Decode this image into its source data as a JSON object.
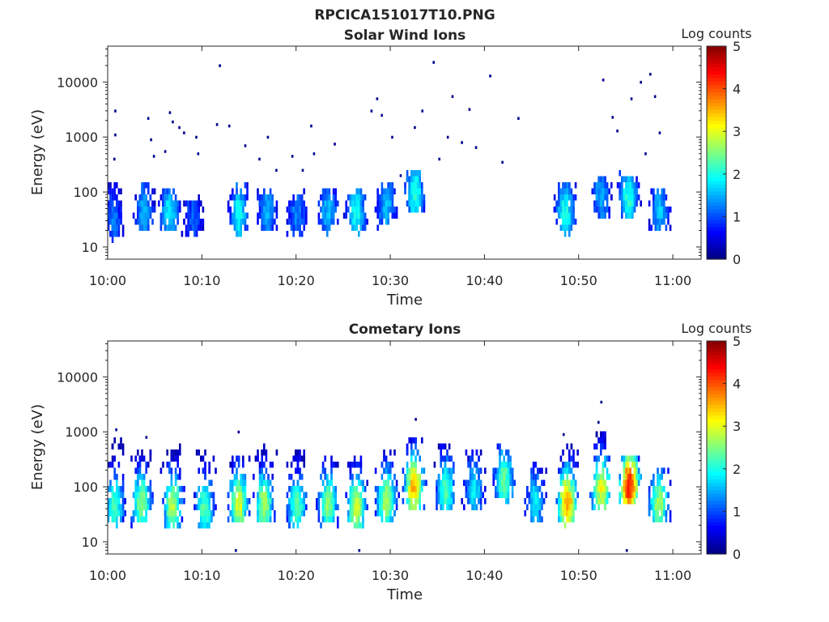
{
  "figure": {
    "title": "RPCICA151017T10.PNG"
  },
  "chart_data": [
    {
      "type": "heatmap",
      "title": "Solar Wind Ions",
      "xlabel": "Time",
      "ylabel": "Energy (eV)",
      "x_ticks": [
        "10:00",
        "10:10",
        "10:20",
        "10:30",
        "10:40",
        "10:50",
        "11:00"
      ],
      "x_range_minutes": [
        0,
        63
      ],
      "y_scale": "log",
      "y_ticks": [
        10,
        100,
        1000,
        10000
      ],
      "y_range": [
        6,
        45000
      ],
      "colorbar": {
        "label": "Log counts",
        "range": [
          0,
          5
        ],
        "ticks": [
          0,
          1,
          2,
          3,
          4,
          5
        ],
        "colormap": "jet"
      },
      "bursts": [
        {
          "t_min": 0.5,
          "energy_ev": 35,
          "peak_log_counts": 1.2,
          "top_ev": 150
        },
        {
          "t_min": 3.8,
          "energy_ev": 55,
          "peak_log_counts": 1.5,
          "top_ev": 150
        },
        {
          "t_min": 6.5,
          "energy_ev": 50,
          "peak_log_counts": 1.8,
          "top_ev": 130
        },
        {
          "t_min": 9.0,
          "energy_ev": 40,
          "peak_log_counts": 1.1,
          "top_ev": 80
        },
        {
          "t_min": 13.8,
          "energy_ev": 45,
          "peak_log_counts": 1.9,
          "top_ev": 140
        },
        {
          "t_min": 16.8,
          "energy_ev": 50,
          "peak_log_counts": 1.5,
          "top_ev": 90
        },
        {
          "t_min": 20.0,
          "energy_ev": 45,
          "peak_log_counts": 1.3,
          "top_ev": 110
        },
        {
          "t_min": 23.3,
          "energy_ev": 50,
          "peak_log_counts": 1.6,
          "top_ev": 120
        },
        {
          "t_min": 26.3,
          "energy_ev": 50,
          "peak_log_counts": 2.0,
          "top_ev": 110
        },
        {
          "t_min": 29.5,
          "energy_ev": 60,
          "peak_log_counts": 1.6,
          "top_ev": 170
        },
        {
          "t_min": 32.5,
          "energy_ev": 110,
          "peak_log_counts": 2.1,
          "top_ev": 280
        },
        {
          "t_min": 48.5,
          "energy_ev": 50,
          "peak_log_counts": 2.0,
          "top_ev": 160
        },
        {
          "t_min": 52.3,
          "energy_ev": 90,
          "peak_log_counts": 1.5,
          "top_ev": 200
        },
        {
          "t_min": 55.2,
          "energy_ev": 90,
          "peak_log_counts": 2.1,
          "top_ev": 240
        },
        {
          "t_min": 58.5,
          "energy_ev": 50,
          "peak_log_counts": 1.6,
          "top_ev": 120
        }
      ],
      "scatter_points": [
        {
          "t_min": 0.7,
          "energy_ev": 3000
        },
        {
          "t_min": 0.7,
          "energy_ev": 1100
        },
        {
          "t_min": 0.6,
          "energy_ev": 400
        },
        {
          "t_min": 4.2,
          "energy_ev": 2200
        },
        {
          "t_min": 4.5,
          "energy_ev": 900
        },
        {
          "t_min": 4.8,
          "energy_ev": 450
        },
        {
          "t_min": 6.5,
          "energy_ev": 2800
        },
        {
          "t_min": 6.8,
          "energy_ev": 1900
        },
        {
          "t_min": 7.5,
          "energy_ev": 1500
        },
        {
          "t_min": 6.0,
          "energy_ev": 550
        },
        {
          "t_min": 8.0,
          "energy_ev": 1200
        },
        {
          "t_min": 9.3,
          "energy_ev": 1000
        },
        {
          "t_min": 9.5,
          "energy_ev": 500
        },
        {
          "t_min": 11.8,
          "energy_ev": 20000
        },
        {
          "t_min": 11.5,
          "energy_ev": 1700
        },
        {
          "t_min": 12.8,
          "energy_ev": 1600
        },
        {
          "t_min": 14.5,
          "energy_ev": 700
        },
        {
          "t_min": 16.0,
          "energy_ev": 400
        },
        {
          "t_min": 16.9,
          "energy_ev": 1000
        },
        {
          "t_min": 17.8,
          "energy_ev": 250
        },
        {
          "t_min": 19.5,
          "energy_ev": 450
        },
        {
          "t_min": 20.6,
          "energy_ev": 250
        },
        {
          "t_min": 21.5,
          "energy_ev": 1600
        },
        {
          "t_min": 21.8,
          "energy_ev": 500
        },
        {
          "t_min": 24.0,
          "energy_ev": 750
        },
        {
          "t_min": 27.9,
          "energy_ev": 3000
        },
        {
          "t_min": 28.5,
          "energy_ev": 5000
        },
        {
          "t_min": 29.0,
          "energy_ev": 2500
        },
        {
          "t_min": 30.1,
          "energy_ev": 1000
        },
        {
          "t_min": 31.0,
          "energy_ev": 200
        },
        {
          "t_min": 32.5,
          "energy_ev": 1500
        },
        {
          "t_min": 33.3,
          "energy_ev": 3000
        },
        {
          "t_min": 34.5,
          "energy_ev": 23000
        },
        {
          "t_min": 35.1,
          "energy_ev": 400
        },
        {
          "t_min": 36.5,
          "energy_ev": 5500
        },
        {
          "t_min": 36.0,
          "energy_ev": 1000
        },
        {
          "t_min": 37.5,
          "energy_ev": 800
        },
        {
          "t_min": 38.3,
          "energy_ev": 3200
        },
        {
          "t_min": 39.0,
          "energy_ev": 650
        },
        {
          "t_min": 40.5,
          "energy_ev": 13000
        },
        {
          "t_min": 41.8,
          "energy_ev": 350
        },
        {
          "t_min": 43.5,
          "energy_ev": 2200
        },
        {
          "t_min": 52.5,
          "energy_ev": 11000
        },
        {
          "t_min": 53.5,
          "energy_ev": 2300
        },
        {
          "t_min": 54.0,
          "energy_ev": 1300
        },
        {
          "t_min": 55.5,
          "energy_ev": 5000
        },
        {
          "t_min": 56.5,
          "energy_ev": 10000
        },
        {
          "t_min": 57.5,
          "energy_ev": 14000
        },
        {
          "t_min": 58.0,
          "energy_ev": 5500
        },
        {
          "t_min": 58.5,
          "energy_ev": 1200
        },
        {
          "t_min": 57.0,
          "energy_ev": 500
        }
      ]
    },
    {
      "type": "heatmap",
      "title": "Cometary Ions",
      "xlabel": "Time",
      "ylabel": "Energy (eV)",
      "x_ticks": [
        "10:00",
        "10:10",
        "10:20",
        "10:30",
        "10:40",
        "10:50",
        "11:00"
      ],
      "x_range_minutes": [
        0,
        63
      ],
      "y_scale": "log",
      "y_ticks": [
        10,
        100,
        1000,
        10000
      ],
      "y_range": [
        6,
        45000
      ],
      "colorbar": {
        "label": "Log counts",
        "range": [
          0,
          5
        ],
        "ticks": [
          0,
          1,
          2,
          3,
          4,
          5
        ],
        "colormap": "jet"
      },
      "bursts": [
        {
          "t_min": 0.6,
          "energy_ev": 50,
          "peak_log_counts": 2.3,
          "top_ev": 800
        },
        {
          "t_min": 3.5,
          "energy_ev": 55,
          "peak_log_counts": 2.6,
          "top_ev": 500
        },
        {
          "t_min": 6.8,
          "energy_ev": 50,
          "peak_log_counts": 2.8,
          "top_ev": 600
        },
        {
          "t_min": 10.2,
          "energy_ev": 45,
          "peak_log_counts": 2.3,
          "top_ev": 500
        },
        {
          "t_min": 13.8,
          "energy_ev": 55,
          "peak_log_counts": 3.0,
          "top_ev": 400
        },
        {
          "t_min": 16.5,
          "energy_ev": 55,
          "peak_log_counts": 2.7,
          "top_ev": 600
        },
        {
          "t_min": 20.0,
          "energy_ev": 50,
          "peak_log_counts": 2.4,
          "top_ev": 500
        },
        {
          "t_min": 23.3,
          "energy_ev": 55,
          "peak_log_counts": 2.6,
          "top_ev": 400
        },
        {
          "t_min": 26.3,
          "energy_ev": 50,
          "peak_log_counts": 2.9,
          "top_ev": 350
        },
        {
          "t_min": 29.5,
          "energy_ev": 65,
          "peak_log_counts": 2.8,
          "top_ev": 500
        },
        {
          "t_min": 32.4,
          "energy_ev": 110,
          "peak_log_counts": 3.5,
          "top_ev": 900
        },
        {
          "t_min": 35.8,
          "energy_ev": 100,
          "peak_log_counts": 2.3,
          "top_ev": 700
        },
        {
          "t_min": 38.8,
          "energy_ev": 100,
          "peak_log_counts": 1.8,
          "top_ev": 500
        },
        {
          "t_min": 42.0,
          "energy_ev": 150,
          "peak_log_counts": 2.4,
          "top_ev": 600
        },
        {
          "t_min": 45.3,
          "energy_ev": 60,
          "peak_log_counts": 1.8,
          "top_ev": 300
        },
        {
          "t_min": 48.7,
          "energy_ev": 60,
          "peak_log_counts": 3.6,
          "top_ev": 600
        },
        {
          "t_min": 52.3,
          "energy_ev": 100,
          "peak_log_counts": 3.1,
          "top_ev": 1200
        },
        {
          "t_min": 55.3,
          "energy_ev": 120,
          "peak_log_counts": 4.3,
          "top_ev": 400
        },
        {
          "t_min": 58.4,
          "energy_ev": 55,
          "peak_log_counts": 2.7,
          "top_ev": 250
        }
      ],
      "scatter_points": [
        {
          "t_min": 0.8,
          "energy_ev": 1100
        },
        {
          "t_min": 4.0,
          "energy_ev": 800
        },
        {
          "t_min": 13.8,
          "energy_ev": 1000
        },
        {
          "t_min": 32.6,
          "energy_ev": 1700
        },
        {
          "t_min": 48.3,
          "energy_ev": 900
        },
        {
          "t_min": 52.0,
          "energy_ev": 1500
        },
        {
          "t_min": 52.3,
          "energy_ev": 3500
        },
        {
          "t_min": 55.0,
          "energy_ev": 7
        },
        {
          "t_min": 13.5,
          "energy_ev": 7
        },
        {
          "t_min": 26.6,
          "energy_ev": 7
        }
      ]
    }
  ]
}
